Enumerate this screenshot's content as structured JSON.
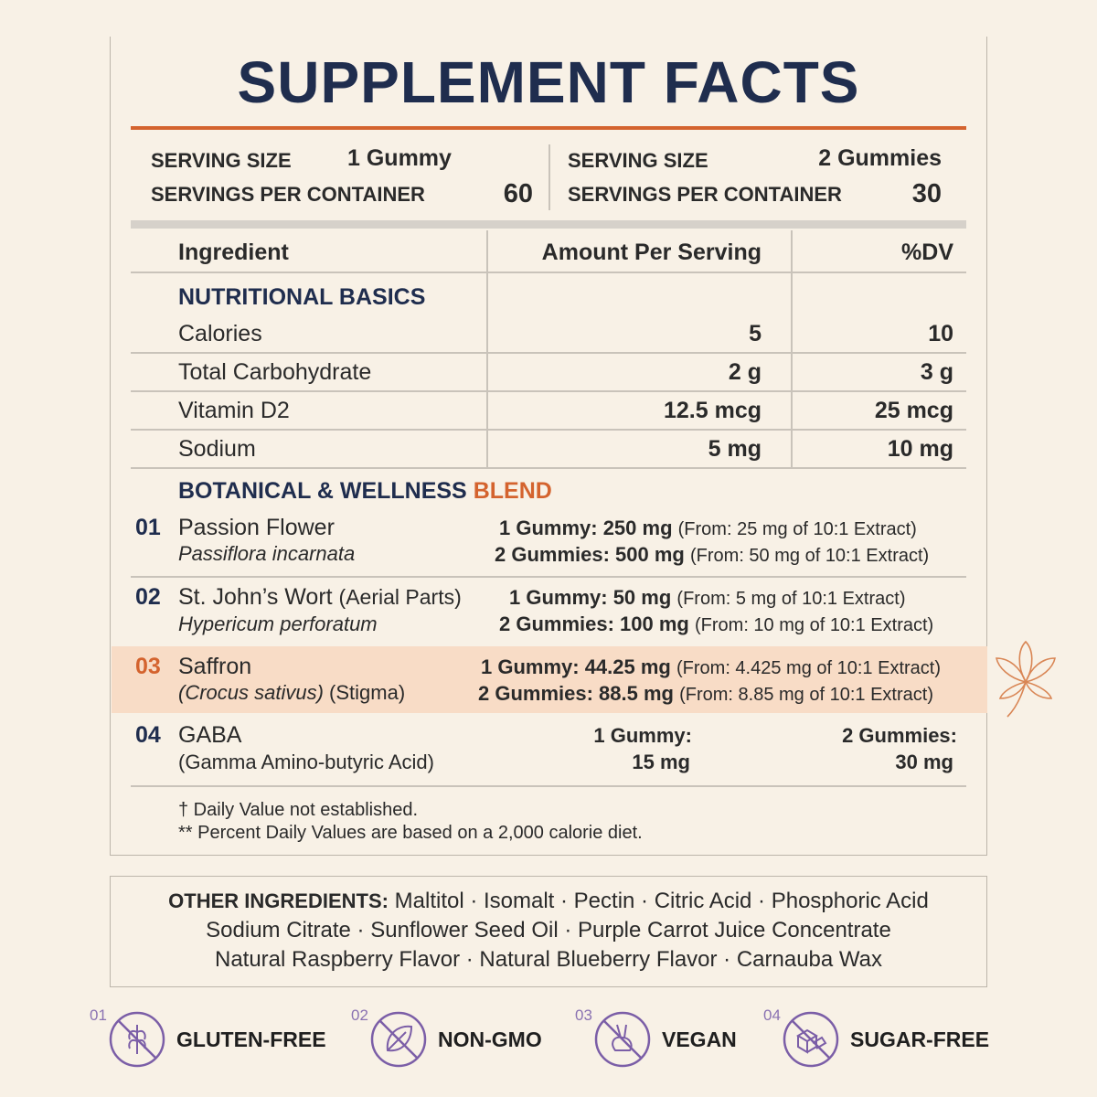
{
  "title": "SUPPLEMENT FACTS",
  "serving": [
    {
      "size_label": "SERVING SIZE",
      "size": "1 Gummy",
      "per_label": "SERVINGS PER CONTAINER",
      "per": "60"
    },
    {
      "size_label": "SERVING SIZE",
      "size": "2 Gummies",
      "per_label": "SERVINGS PER CONTAINER",
      "per": "30"
    }
  ],
  "table": {
    "headers": [
      "Ingredient",
      "Amount Per Serving",
      "%DV"
    ],
    "basics": {
      "heading": "NUTRITIONAL BASICS",
      "rows": [
        [
          "Calories",
          "5",
          "10"
        ],
        [
          "Total Carbohydrate",
          "2 g",
          "3 g"
        ],
        [
          "Vitamin D2",
          "12.5 mcg",
          "25 mcg"
        ],
        [
          "Sodium",
          "5 mg",
          "10 mg"
        ]
      ]
    },
    "blend": {
      "heading": "BOTANICAL & WELLNESS",
      "heading_accent": "BLEND",
      "items": [
        {
          "num": "01",
          "name": "Passion Flower",
          "latin": "Passiflora incarnata",
          "doses": [
            {
              "dose": "1 Gummy: 250 mg",
              "source": "(From: 25 mg of 10:1 Extract)"
            },
            {
              "dose": "2 Gummies: 500 mg",
              "source": "(From: 50 mg of 10:1 Extract)"
            }
          ]
        },
        {
          "num": "02",
          "name": "St. John’s Wort",
          "name_note": "(Aerial Parts)",
          "latin": "Hypericum perforatum",
          "doses": [
            {
              "dose": "1 Gummy: 50 mg",
              "source": "(From: 5 mg of 10:1 Extract)"
            },
            {
              "dose": "2 Gummies: 100 mg",
              "source": "(From: 10 mg of 10:1 Extract)"
            }
          ]
        },
        {
          "num": "03",
          "name": "Saffron",
          "latin": "(Crocus sativus)",
          "latin_note": "(Stigma)",
          "doses": [
            {
              "dose": "1 Gummy: 44.25 mg",
              "source": "(From: 4.425 mg of 10:1 Extract)"
            },
            {
              "dose": "2 Gummies: 88.5 mg",
              "source": "(From: 8.85 mg of 10:1 Extract)"
            }
          ]
        },
        {
          "num": "04",
          "name": "GABA",
          "sub": "(Gamma Amino-butyric Acid)",
          "amount": [
            "1 Gummy:",
            "15 mg"
          ],
          "dv": [
            "2 Gummies:",
            "30 mg"
          ]
        }
      ]
    }
  },
  "footnotes": [
    "† Daily Value not established.",
    "** Percent Daily Values are based on a 2,000 calorie diet."
  ],
  "other_ingredients": {
    "label": "OTHER INGREDIENTS:",
    "lines": [
      "Maltitol · Isomalt · Pectin · Citric Acid · Phosphoric Acid",
      "Sodium Citrate · Sunflower Seed Oil · Purple Carrot Juice Concentrate",
      "Natural Raspberry Flavor · Natural Blueberry Flavor · Carnauba Wax"
    ]
  },
  "badges": [
    {
      "num": "01",
      "label": "GLUTEN-FREE"
    },
    {
      "num": "02",
      "label": "NON-GMO"
    },
    {
      "num": "03",
      "label": "VEGAN"
    },
    {
      "num": "04",
      "label": "SUGAR-FREE"
    }
  ]
}
